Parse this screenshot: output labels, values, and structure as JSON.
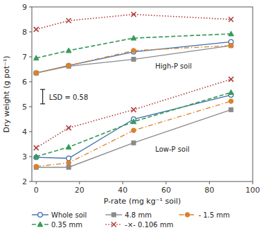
{
  "chart_data": {
    "type": "line",
    "x": [
      0,
      15,
      45,
      90
    ],
    "series": [
      {
        "name": "Whole soil",
        "color": "#3b6ea8",
        "marker": "circle-open",
        "line_style": "solid",
        "values": [
          6.35,
          6.65,
          7.2,
          7.6
        ]
      },
      {
        "name": "Whole soil",
        "color": "#3b6ea8",
        "marker": "circle-open",
        "line_style": "solid",
        "values": [
          2.97,
          2.93,
          4.5,
          5.47
        ]
      },
      {
        "name": "4.8 mm",
        "color": "#8a8a8a",
        "marker": "square",
        "line_style": "solid",
        "values": [
          6.35,
          6.62,
          6.9,
          7.45
        ]
      },
      {
        "name": "4.8 mm",
        "color": "#8a8a8a",
        "marker": "square",
        "line_style": "solid",
        "values": [
          2.57,
          2.57,
          3.55,
          4.88
        ]
      },
      {
        "name": "- 1.5 mm",
        "color": "#d9822b",
        "marker": "circle",
        "line_style": "dashdot",
        "values": [
          6.35,
          6.65,
          7.25,
          7.45
        ]
      },
      {
        "name": "- 1.5 mm",
        "color": "#d9822b",
        "marker": "circle",
        "line_style": "dashdot",
        "values": [
          2.6,
          2.75,
          4.05,
          5.22
        ]
      },
      {
        "name": "0.35 mm",
        "color": "#3a9a5b",
        "marker": "triangle",
        "line_style": "dashed",
        "values": [
          6.95,
          7.25,
          7.75,
          7.92
        ]
      },
      {
        "name": "0.35 mm",
        "color": "#3a9a5b",
        "marker": "triangle",
        "line_style": "dashed",
        "values": [
          3.0,
          3.38,
          4.4,
          5.57
        ]
      },
      {
        "name": "-×- 0.106 mm",
        "color": "#b0413e",
        "marker": "x",
        "line_style": "dotted",
        "values": [
          8.1,
          8.45,
          8.7,
          8.5
        ]
      },
      {
        "name": "-×- 0.106 mm",
        "color": "#b0413e",
        "marker": "x",
        "line_style": "dotted",
        "values": [
          3.35,
          4.15,
          4.88,
          6.1
        ]
      }
    ],
    "xlabel": "P-rate (mg kg⁻¹ soil)",
    "ylabel": "Dry weight (g pot⁻¹)",
    "xlim": [
      -2,
      100
    ],
    "ylim": [
      2,
      9
    ],
    "xticks": [
      0,
      20,
      40,
      60,
      80,
      100
    ],
    "yticks": [
      2,
      3,
      4,
      5,
      6,
      7,
      8,
      9
    ],
    "lsd": {
      "value": 0.58,
      "label": "LSD = 0.58"
    },
    "annotations": [
      "High-P soil",
      "Low-P soil"
    ],
    "grid": false,
    "legend": "bottom"
  }
}
